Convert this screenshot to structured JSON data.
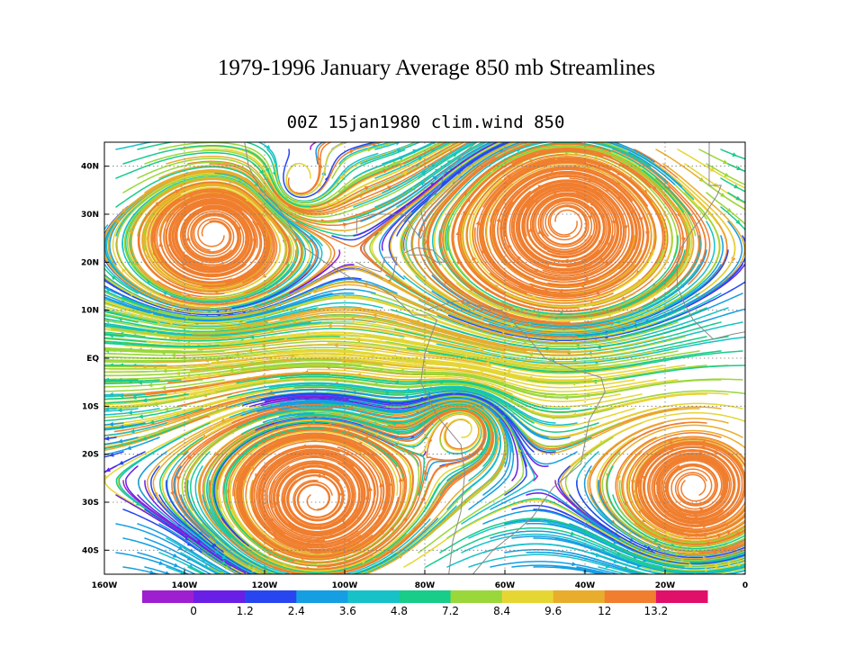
{
  "title": "1979-1996 January Average 850 mb Streamlines",
  "subtitle": "00Z 15jan1980 clim.wind 850",
  "map": {
    "lat_labels": [
      "40N",
      "30N",
      "20N",
      "10N",
      "EQ",
      "10S",
      "20S",
      "30S",
      "40S"
    ],
    "lon_labels": [
      "160W",
      "140W",
      "120W",
      "100W",
      "80W",
      "60W",
      "40W",
      "20W",
      "0"
    ]
  },
  "legend": {
    "colors": [
      "#9d1fd0",
      "#6a1fe6",
      "#2846f0",
      "#159ee2",
      "#16c2c8",
      "#18cc8a",
      "#9ad73a",
      "#e6d634",
      "#e8ad2c",
      "#f07e2e",
      "#e0106a"
    ],
    "labels": [
      "0",
      "1.2",
      "2.4",
      "3.6",
      "4.8",
      "7.2",
      "8.4",
      "9.6",
      "12",
      "13.2"
    ]
  }
}
